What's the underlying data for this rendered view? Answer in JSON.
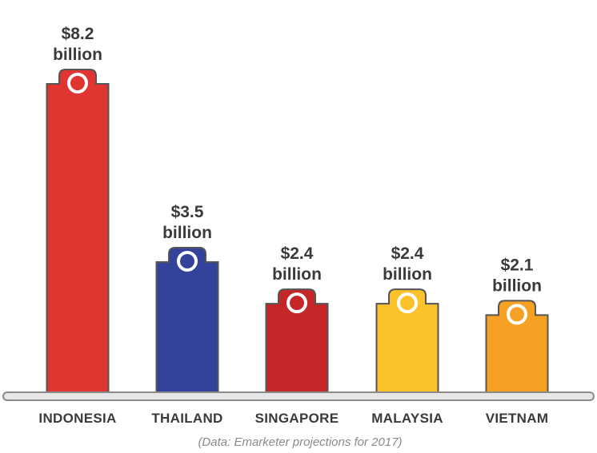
{
  "chart_data": {
    "type": "bar",
    "categories": [
      "INDONESIA",
      "THAILAND",
      "SINGAPORE",
      "MALAYSIA",
      "VIETNAM"
    ],
    "values": [
      8.2,
      3.5,
      2.4,
      2.4,
      2.1
    ],
    "value_labels": [
      [
        "$8.2",
        "billion"
      ],
      [
        "$3.5",
        "billion"
      ],
      [
        "$2.4",
        "billion"
      ],
      [
        "$2.4",
        "billion"
      ],
      [
        "$2.1",
        "billion"
      ]
    ],
    "units": "USD billions",
    "ylim": [
      0,
      8.2
    ],
    "grid": false,
    "source_note": "(Data: Emarketer projections for 2017)",
    "colors": {
      "bars": [
        "#e03530",
        "#33439b",
        "#c52728",
        "#fbc22c",
        "#f6a124"
      ],
      "bar_outline": "#555555",
      "baseline_fill": "#e6e6e6",
      "baseline_stroke": "#8a8a8a",
      "label_text": "#3a3a3a",
      "note_text": "#8a8a8a",
      "ring": "#ffffff"
    }
  }
}
